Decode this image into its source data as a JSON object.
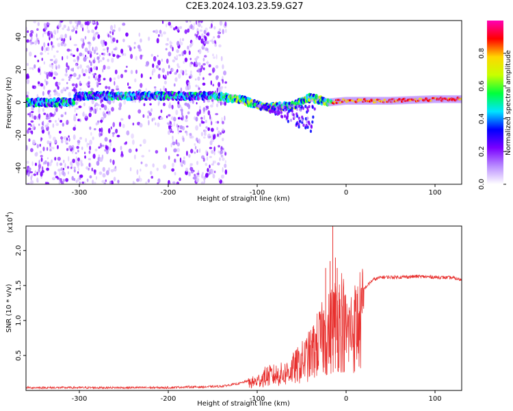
{
  "title": "C2E3.2024.103.23.59.G27",
  "chart_data": [
    {
      "type": "heatmap",
      "xlabel": "Height of straight line (km)",
      "ylabel": "Frequency (Hz)",
      "xlim": [
        -360,
        130
      ],
      "ylim": [
        -50,
        50
      ],
      "x_ticks": [
        -300,
        -200,
        -100,
        0,
        100
      ],
      "y_ticks": [
        -40,
        -20,
        0,
        20,
        40
      ],
      "colorbar": {
        "label": "Normalized spectral amplitude",
        "range": [
          0,
          1
        ],
        "ticks": [
          "0.0",
          "0.2",
          "0.4",
          "0.6",
          "0.8"
        ],
        "colors": [
          "#ffffff",
          "#b98cff",
          "#7a00ff",
          "#0000ff",
          "#00e5ff",
          "#00ff3c",
          "#c8ff00",
          "#ffd700",
          "#ff0000",
          "#ff00b4"
        ]
      },
      "ridge": [
        {
          "x": -305,
          "f": 4
        },
        {
          "x": -260,
          "f": 4
        },
        {
          "x": -190,
          "f": 4
        },
        {
          "x": -150,
          "f": 4
        },
        {
          "x": -120,
          "f": 2
        },
        {
          "x": -90,
          "f": -3
        },
        {
          "x": -60,
          "f": -2
        },
        {
          "x": -40,
          "f": 3
        },
        {
          "x": -20,
          "f": 0
        },
        {
          "x": 0,
          "f": 1
        },
        {
          "x": 50,
          "f": 1
        },
        {
          "x": 100,
          "f": 2
        },
        {
          "x": 130,
          "f": 2
        }
      ]
    },
    {
      "type": "line",
      "xlabel": "Height of straight line (km)",
      "ylabel": "SNR (10 * v/v)",
      "y_scale_label": "(x10",
      "y_scale_exp": "4",
      "y_scale_close": ")",
      "xlim": [
        -360,
        130
      ],
      "ylim": [
        0,
        2.35
      ],
      "x_ticks": [
        -300,
        -200,
        -100,
        0,
        100
      ],
      "y_ticks": [
        "0.5",
        "1.0",
        "1.5",
        "2.0"
      ],
      "color": "#e8302e",
      "series": [
        {
          "x": [
            -360,
            -300,
            -250,
            -200,
            -180,
            -160,
            -140,
            -120,
            -100,
            -90,
            -80,
            -70,
            -60,
            -50,
            -40,
            -30,
            -20,
            -15,
            -10,
            -5,
            0,
            10,
            20,
            30,
            40,
            60,
            80,
            100,
            120,
            130
          ],
          "y": [
            0.04,
            0.04,
            0.04,
            0.04,
            0.05,
            0.05,
            0.06,
            0.1,
            0.18,
            0.28,
            0.3,
            0.32,
            0.42,
            0.55,
            0.7,
            0.95,
            1.1,
            1.25,
            1.35,
            1.45,
            1.1,
            1.25,
            1.45,
            1.58,
            1.62,
            1.62,
            1.63,
            1.62,
            1.61,
            1.58
          ]
        }
      ],
      "spikes": [
        {
          "x": -15,
          "y": 2.35
        },
        {
          "x": -18,
          "y": 1.85
        },
        {
          "x": -23,
          "y": 1.75
        },
        {
          "x": -12,
          "y": 1.9
        },
        {
          "x": -10,
          "y": 1.75
        },
        {
          "x": -26,
          "y": 1.1
        },
        {
          "x": -8,
          "y": 1.4
        }
      ]
    }
  ]
}
